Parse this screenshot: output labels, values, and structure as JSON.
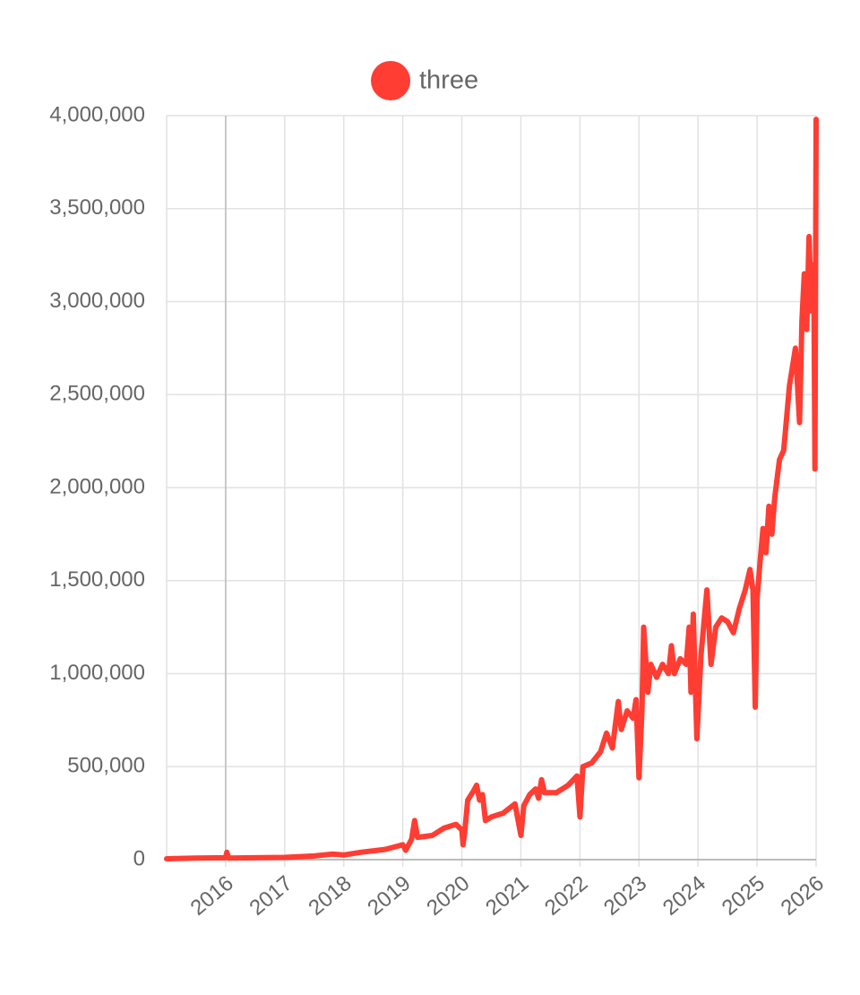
{
  "chart_data": {
    "type": "line",
    "x": [
      2015.0,
      2015.5,
      2016.0,
      2016.02,
      2016.05,
      2016.5,
      2017.0,
      2017.5,
      2017.8,
      2018.0,
      2018.3,
      2018.7,
      2019.0,
      2019.05,
      2019.15,
      2019.2,
      2019.25,
      2019.5,
      2019.7,
      2019.9,
      2020.0,
      2020.02,
      2020.05,
      2020.1,
      2020.2,
      2020.25,
      2020.3,
      2020.35,
      2020.4,
      2020.5,
      2020.7,
      2020.9,
      2021.0,
      2021.05,
      2021.15,
      2021.25,
      2021.3,
      2021.35,
      2021.4,
      2021.6,
      2021.8,
      2021.95,
      2022.0,
      2022.05,
      2022.2,
      2022.35,
      2022.45,
      2022.55,
      2022.65,
      2022.7,
      2022.8,
      2022.9,
      2022.95,
      2023.0,
      2023.05,
      2023.08,
      2023.15,
      2023.2,
      2023.3,
      2023.4,
      2023.5,
      2023.55,
      2023.6,
      2023.7,
      2023.8,
      2023.85,
      2023.88,
      2023.92,
      2023.98,
      2024.05,
      2024.15,
      2024.22,
      2024.3,
      2024.4,
      2024.5,
      2024.6,
      2024.7,
      2024.8,
      2024.88,
      2024.93,
      2024.97,
      2025.0,
      2025.05,
      2025.1,
      2025.15,
      2025.2,
      2025.25,
      2025.3,
      2025.38,
      2025.45,
      2025.55,
      2025.65,
      2025.72,
      2025.76,
      2025.8,
      2025.84,
      2025.88,
      2025.92,
      2025.96,
      2025.98,
      2026.0
    ],
    "series": [
      {
        "name": "three",
        "color": "#ff3d33",
        "values": [
          5000,
          8000,
          10000,
          40000,
          8000,
          10000,
          12000,
          20000,
          30000,
          25000,
          40000,
          55000,
          80000,
          50000,
          110000,
          210000,
          120000,
          130000,
          170000,
          190000,
          160000,
          80000,
          150000,
          320000,
          370000,
          400000,
          320000,
          350000,
          210000,
          230000,
          250000,
          300000,
          130000,
          290000,
          350000,
          380000,
          330000,
          430000,
          360000,
          360000,
          400000,
          450000,
          230000,
          500000,
          520000,
          580000,
          680000,
          600000,
          850000,
          700000,
          800000,
          760000,
          860000,
          440000,
          800000,
          1250000,
          900000,
          1050000,
          980000,
          1050000,
          1000000,
          1150000,
          1000000,
          1080000,
          1050000,
          1250000,
          900000,
          1320000,
          650000,
          1100000,
          1450000,
          1050000,
          1250000,
          1300000,
          1280000,
          1220000,
          1350000,
          1450000,
          1560000,
          1450000,
          820000,
          1400000,
          1600000,
          1780000,
          1650000,
          1900000,
          1750000,
          1950000,
          2150000,
          2200000,
          2550000,
          2750000,
          2350000,
          2900000,
          3150000,
          2850000,
          3350000,
          2950000,
          3200000,
          2100000,
          3980000
        ]
      }
    ],
    "xlim": [
      2015.0,
      2026.0
    ],
    "xticks": [
      2016,
      2017,
      2018,
      2019,
      2020,
      2021,
      2022,
      2023,
      2024,
      2025,
      2026
    ],
    "ylim": [
      0,
      4000000
    ],
    "yticks": [
      0,
      {
        "value": 500000,
        "label": "500,000"
      },
      {
        "value": 1000000,
        "label": "1,000,000"
      },
      {
        "value": 1500000,
        "label": "1,500,000"
      },
      {
        "value": 2000000,
        "label": "2,000,000"
      },
      {
        "value": 2500000,
        "label": "2,500,000"
      },
      {
        "value": 3000000,
        "label": "3,000,000"
      },
      {
        "value": 3500000,
        "label": "3,500,000"
      },
      {
        "value": 4000000,
        "label": "4,000,000"
      }
    ],
    "grid": true,
    "legend": "top"
  }
}
